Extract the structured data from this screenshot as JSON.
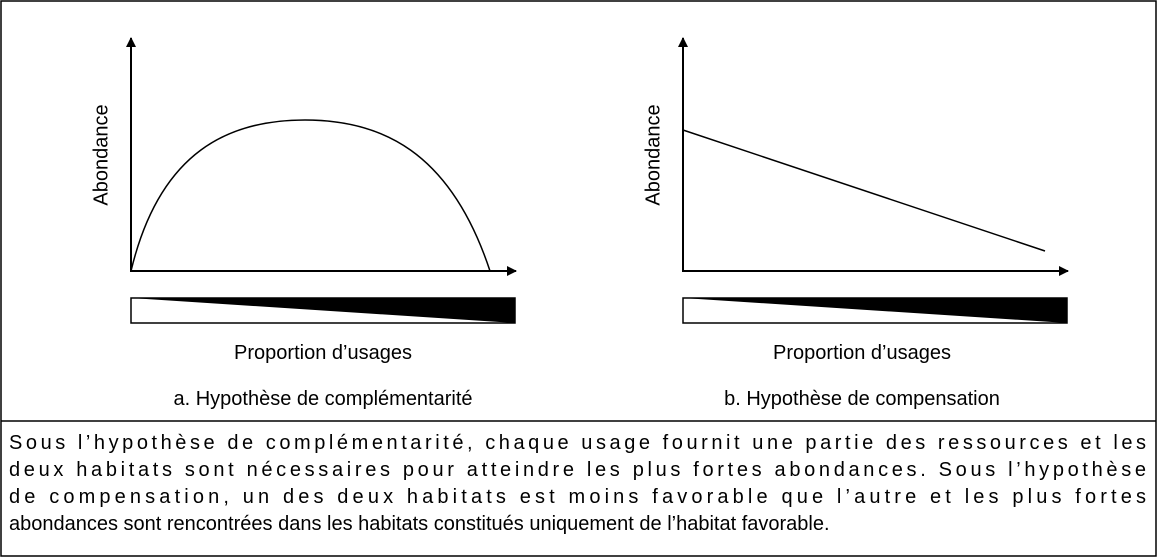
{
  "panels": [
    {
      "y_label": "Abondance",
      "x_label": "Proportion d’usages",
      "caption": "a. Hypothèse de complémentarité"
    },
    {
      "y_label": "Abondance",
      "x_label": "Proportion d’usages",
      "caption": "b. Hypothèse de compensation"
    }
  ],
  "description": {
    "lines": [
      "Sous l’hypothèse de complémentarité, chaque usage fournit une partie des ressources et les",
      "deux habitats sont nécessaires pour atteindre les plus fortes abondances. Sous l’hypothèse",
      "de compensation, un des deux habitats est moins favorable que l’autre et les plus fortes",
      "abondances sont rencontrées dans les habitats constitués uniquement de l’habitat favorable."
    ]
  }
}
